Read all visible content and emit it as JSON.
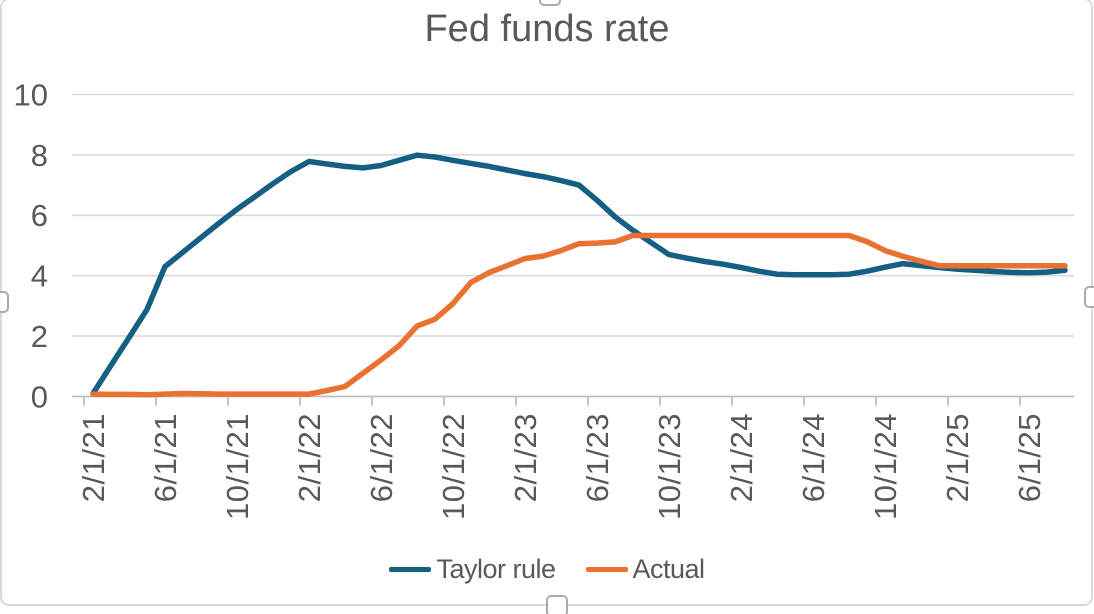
{
  "chart_data": {
    "type": "line",
    "title": "Fed funds rate",
    "x": [
      "2/1/21",
      "3/1/21",
      "4/1/21",
      "5/1/21",
      "6/1/21",
      "7/1/21",
      "8/1/21",
      "9/1/21",
      "10/1/21",
      "11/1/21",
      "12/1/21",
      "1/1/22",
      "2/1/22",
      "3/1/22",
      "4/1/22",
      "5/1/22",
      "6/1/22",
      "7/1/22",
      "8/1/22",
      "9/1/22",
      "10/1/22",
      "11/1/22",
      "12/1/22",
      "1/1/23",
      "2/1/23",
      "3/1/23",
      "4/1/23",
      "5/1/23",
      "6/1/23",
      "7/1/23",
      "8/1/23",
      "9/1/23",
      "10/1/23",
      "11/1/23",
      "12/1/23",
      "1/1/24",
      "2/1/24",
      "3/1/24",
      "4/1/24",
      "5/1/24",
      "6/1/24",
      "7/1/24",
      "8/1/24",
      "9/1/24",
      "10/1/24",
      "11/1/24",
      "12/1/24",
      "1/1/25",
      "2/1/25",
      "3/1/25",
      "4/1/25",
      "5/1/25",
      "6/1/25",
      "7/1/25",
      "8/1/25"
    ],
    "x_tick_labels": [
      "2/1/21",
      "6/1/21",
      "10/1/21",
      "2/1/22",
      "6/1/22",
      "10/1/22",
      "2/1/23",
      "6/1/23",
      "10/1/23",
      "2/1/24",
      "6/1/24",
      "10/1/24",
      "2/1/25",
      "6/1/25"
    ],
    "x_tick_label_interval": 4,
    "ylim": [
      0,
      10
    ],
    "yticks": [
      0,
      2,
      4,
      6,
      8,
      10
    ],
    "grid": true,
    "legend_position": "bottom",
    "series": [
      {
        "name": "Taylor rule",
        "color": "#156082",
        "values": [
          0.1,
          1.03,
          1.95,
          2.88,
          4.3,
          4.78,
          5.26,
          5.74,
          6.2,
          6.62,
          7.05,
          7.45,
          7.78,
          7.7,
          7.62,
          7.57,
          7.65,
          7.82,
          7.99,
          7.93,
          7.82,
          7.72,
          7.62,
          7.5,
          7.38,
          7.28,
          7.15,
          7.0,
          6.5,
          5.95,
          5.5,
          5.1,
          4.7,
          4.58,
          4.47,
          4.38,
          4.27,
          4.15,
          4.05,
          4.03,
          4.03,
          4.03,
          4.05,
          4.15,
          4.28,
          4.4,
          4.33,
          4.27,
          4.22,
          4.18,
          4.14,
          4.11,
          4.1,
          4.12,
          4.18
        ]
      },
      {
        "name": "Actual",
        "color": "#E97132",
        "values": [
          0.08,
          0.07,
          0.07,
          0.06,
          0.08,
          0.1,
          0.09,
          0.08,
          0.08,
          0.08,
          0.08,
          0.08,
          0.08,
          0.2,
          0.33,
          0.77,
          1.21,
          1.68,
          2.33,
          2.56,
          3.08,
          3.78,
          4.1,
          4.33,
          4.57,
          4.65,
          4.83,
          5.06,
          5.08,
          5.12,
          5.33,
          5.33,
          5.33,
          5.33,
          5.33,
          5.33,
          5.33,
          5.33,
          5.33,
          5.33,
          5.33,
          5.33,
          5.33,
          5.13,
          4.83,
          4.64,
          4.48,
          4.33,
          4.33,
          4.33,
          4.33,
          4.33,
          4.33,
          4.33,
          4.33
        ]
      }
    ]
  },
  "colors": {
    "text": "#595959",
    "gridline": "#D9D9D9",
    "axis": "#BFBFBF",
    "border": "#D9D9D9",
    "background": "#FFFFFF",
    "handle_border": "#ABABAB"
  }
}
